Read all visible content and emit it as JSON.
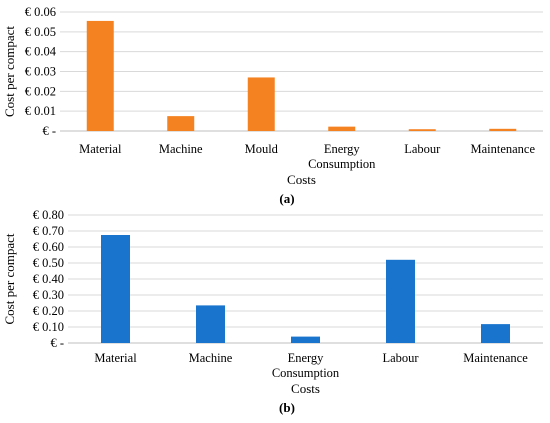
{
  "chart_data": [
    {
      "type": "bar",
      "panel_label": "(a)",
      "title": "",
      "xlabel": "Costs",
      "ylabel": "Cost per compact",
      "categories": [
        [
          "Material"
        ],
        [
          "Machine"
        ],
        [
          "Mould"
        ],
        [
          "Energy",
          "Consumption"
        ],
        [
          "Labour"
        ],
        [
          "Maintenance"
        ]
      ],
      "values": [
        0.0555,
        0.0075,
        0.027,
        0.0022,
        0.0009,
        0.0011
      ],
      "ylim": [
        0,
        0.06
      ],
      "yticks": [
        0,
        0.01,
        0.02,
        0.03,
        0.04,
        0.05,
        0.06
      ],
      "ytick_labels": [
        "€ -",
        "€ 0.01",
        "€ 0.02",
        "€ 0.03",
        "€ 0.04",
        "€ 0.05",
        "€ 0.06"
      ],
      "color": "#F58220",
      "grid": true,
      "legend": false
    },
    {
      "type": "bar",
      "panel_label": "(b)",
      "title": "",
      "xlabel": "Costs",
      "ylabel": "Cost per compact",
      "categories": [
        [
          "Material"
        ],
        [
          "Machine"
        ],
        [
          "Energy",
          "Consumption"
        ],
        [
          "Labour"
        ],
        [
          "Maintenance"
        ]
      ],
      "values": [
        0.675,
        0.235,
        0.04,
        0.52,
        0.118
      ],
      "ylim": [
        0,
        0.8
      ],
      "yticks": [
        0,
        0.1,
        0.2,
        0.3,
        0.4,
        0.5,
        0.6,
        0.7,
        0.8
      ],
      "ytick_labels": [
        "€ -",
        "€ 0.10",
        "€ 0.20",
        "€ 0.30",
        "€ 0.40",
        "€ 0.50",
        "€ 0.60",
        "€ 0.70",
        "€ 0.80"
      ],
      "color": "#1874CD",
      "grid": true,
      "legend": false
    }
  ]
}
